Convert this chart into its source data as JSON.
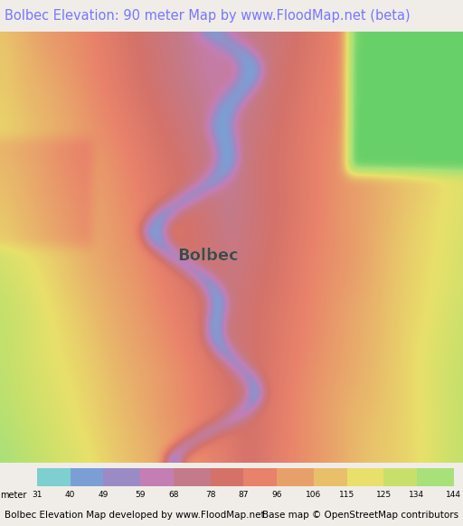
{
  "title": "Bolbec Elevation: 90 meter Map by www.FloodMap.net (beta)",
  "title_color": "#7777ff",
  "title_fontsize": 10.5,
  "footer_left": "Bolbec Elevation Map developed by www.FloodMap.net",
  "footer_right": "Base map © OpenStreetMap contributors",
  "footer_fontsize": 7.5,
  "colorbar_label": "meter",
  "colorbar_ticks": [
    31,
    40,
    49,
    59,
    68,
    78,
    87,
    96,
    106,
    115,
    125,
    134,
    144
  ],
  "colorbar_colors": [
    "#7ecfcf",
    "#7b9fd4",
    "#9b8bc4",
    "#c47eb4",
    "#c47a8a",
    "#d4726a",
    "#e8826a",
    "#e8a06a",
    "#e8c06a",
    "#e8e06a",
    "#c8e06a",
    "#a8e07a",
    "#68d068"
  ],
  "bg_color": "#f0ede8",
  "map_bg": "#f0ede8",
  "fig_width": 5.12,
  "fig_height": 5.82,
  "dpi": 100
}
